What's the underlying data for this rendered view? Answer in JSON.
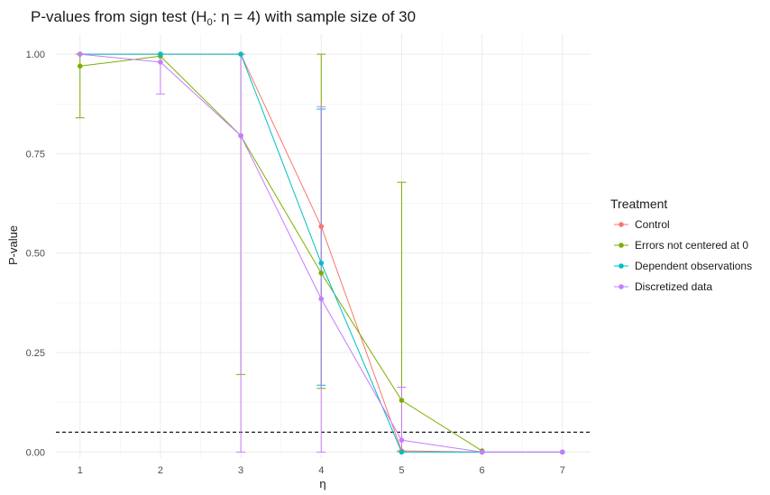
{
  "chart_data": {
    "type": "line",
    "title": "P-values from sign test (H",
    "title_sub": "0",
    "title_rest": ": η = 4) with sample size of 30",
    "xlabel": "η",
    "ylabel": "P-value",
    "xlim": [
      0.7,
      7.35
    ],
    "ylim": [
      -0.015,
      1.05
    ],
    "x_ticks": [
      1,
      2,
      3,
      4,
      5,
      6,
      7
    ],
    "x_tick_labels": [
      "1",
      "2",
      "3",
      "4",
      "5",
      "6",
      "7"
    ],
    "y_ticks": [
      0,
      0.25,
      0.5,
      0.75,
      1
    ],
    "y_tick_labels": [
      "0.00",
      "0.25",
      "0.50",
      "0.75",
      "1.00"
    ],
    "reference_line": {
      "y": 0.05,
      "style": "dashed",
      "color": "#000000"
    },
    "grid": true,
    "legend": {
      "title": "Treatment",
      "placement": "right"
    },
    "x": [
      1,
      2,
      3,
      4,
      5,
      6,
      7
    ],
    "series": [
      {
        "name": "Control",
        "color": "#F8766D",
        "values": [
          1.0,
          1.0,
          1.0,
          0.567,
          0.003,
          0.0,
          0.0
        ],
        "lower": [
          null,
          null,
          null,
          null,
          null,
          null,
          null
        ],
        "upper": [
          null,
          null,
          null,
          null,
          null,
          null,
          null
        ]
      },
      {
        "name": "Errors not centered at 0",
        "color": "#7CAE00",
        "values": [
          0.97,
          0.995,
          0.795,
          0.45,
          0.13,
          0.003,
          null
        ],
        "lower": [
          0.84,
          null,
          0.195,
          0.16,
          0.003,
          null,
          null
        ],
        "upper": [
          1.0,
          null,
          1.0,
          1.0,
          0.678,
          0.005,
          null
        ]
      },
      {
        "name": "Dependent observations",
        "color": "#00BFC4",
        "values": [
          1.0,
          1.0,
          1.0,
          0.475,
          0.0,
          0.0,
          0.0
        ],
        "lower": [
          null,
          null,
          null,
          0.168,
          null,
          null,
          null
        ],
        "upper": [
          null,
          null,
          null,
          0.862,
          null,
          null,
          null
        ]
      },
      {
        "name": "Discretized data",
        "color": "#C77CFF",
        "values": [
          1.0,
          0.98,
          0.795,
          0.385,
          0.03,
          0.0,
          0.0
        ],
        "lower": [
          null,
          0.9,
          0.0,
          0.0,
          0.0,
          null,
          null
        ],
        "upper": [
          null,
          1.0,
          1.0,
          0.868,
          0.163,
          null,
          null
        ]
      }
    ]
  }
}
